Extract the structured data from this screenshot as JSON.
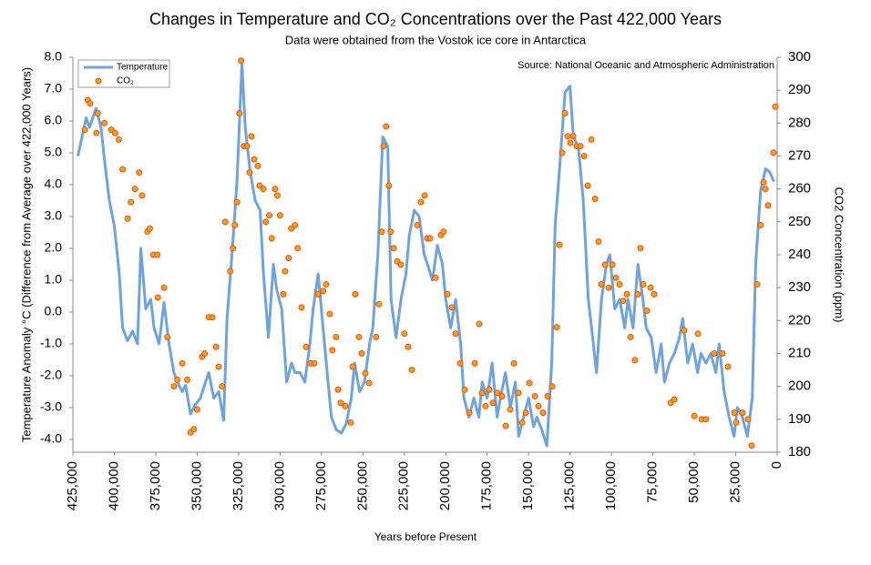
{
  "chart_data": {
    "type": "line",
    "title": "Changes in Temperature and CO₂ Concentrations over the Past 422,000 Years",
    "subtitle": "Data were obtained from the Vostok ice core in Antarctica",
    "annotation": "Source: National Oceanic and Atmospheric Administration",
    "xlabel": "Years before Present",
    "ylabel": "Temperature Anomaly °C (Difference from Average over 422,000 Years)",
    "y2label": "CO2 Concentration (ppm)",
    "xlim": [
      425000,
      0
    ],
    "ylim": [
      -4.4,
      8
    ],
    "y2lim": [
      180,
      300
    ],
    "xticks": [
      {
        "value": 425000,
        "label": "425,000"
      },
      {
        "value": 400000,
        "label": "400,000"
      },
      {
        "value": 375000,
        "label": "375,000"
      },
      {
        "value": 350000,
        "label": "350,000"
      },
      {
        "value": 325000,
        "label": "325,000"
      },
      {
        "value": 300000,
        "label": "300,000"
      },
      {
        "value": 275000,
        "label": "275,000"
      },
      {
        "value": 250000,
        "label": "250,000"
      },
      {
        "value": 225000,
        "label": "225,000"
      },
      {
        "value": 200000,
        "label": "200,000"
      },
      {
        "value": 175000,
        "label": "175,000"
      },
      {
        "value": 150000,
        "label": "150,000"
      },
      {
        "value": 125000,
        "label": "125,000"
      },
      {
        "value": 100000,
        "label": "100,000"
      },
      {
        "value": 75000,
        "label": "75,000"
      },
      {
        "value": 50000,
        "label": "50,000"
      },
      {
        "value": 25000,
        "label": "25,000"
      },
      0
    ],
    "yticks": [
      {
        "value": 8,
        "label": "8.0"
      },
      {
        "value": 7,
        "label": "7.0"
      },
      {
        "value": 6,
        "label": "6.0"
      },
      {
        "value": 5,
        "label": "5.0"
      },
      {
        "value": 4,
        "label": "4.0"
      },
      {
        "value": 3,
        "label": "3.0"
      },
      {
        "value": 2,
        "label": "2.0"
      },
      {
        "value": 1,
        "label": "1.0"
      },
      {
        "value": 0,
        "label": "0.0"
      },
      {
        "value": -1,
        "label": "-1.0"
      },
      {
        "value": -2,
        "label": "-2.0"
      },
      {
        "value": -3,
        "label": "-3.0"
      },
      {
        "value": -4,
        "label": "-4.0"
      }
    ],
    "y2ticks": [
      300,
      290,
      280,
      270,
      260,
      250,
      240,
      230,
      220,
      210,
      200,
      190,
      180
    ],
    "legend": "upper left",
    "series": [
      {
        "name": "Temperature",
        "type": "line",
        "color": "#6fa3dc",
        "x": [
          422000,
          417000,
          415000,
          411000,
          408000,
          406000,
          403000,
          400000,
          397000,
          395000,
          392000,
          389000,
          386000,
          384000,
          381000,
          378000,
          376000,
          373000,
          370000,
          367000,
          364000,
          362000,
          359000,
          357000,
          354000,
          351000,
          348000,
          345000,
          343000,
          340000,
          337000,
          334000,
          332000,
          329000,
          326000,
          323000,
          321000,
          318000,
          315000,
          312000,
          310000,
          307000,
          304000,
          302000,
          299000,
          296000,
          293000,
          291000,
          288000,
          285000,
          282000,
          280000,
          277000,
          274000,
          271000,
          269000,
          266000,
          263000,
          260000,
          257000,
          255000,
          252000,
          249000,
          246000,
          244000,
          241000,
          238000,
          235000,
          233000,
          230000,
          227000,
          224000,
          222000,
          219000,
          216000,
          213000,
          211000,
          208000,
          205000,
          202000,
          200000,
          197000,
          194000,
          191000,
          189000,
          186000,
          183000,
          180000,
          178000,
          175000,
          172000,
          169000,
          167000,
          164000,
          161000,
          158000,
          156000,
          153000,
          150000,
          147000,
          145000,
          142000,
          139000,
          136000,
          134000,
          131000,
          128000,
          125000,
          123000,
          120000,
          117000,
          114000,
          112000,
          109000,
          106000,
          103000,
          101000,
          98000,
          95000,
          92000,
          90000,
          87000,
          84000,
          81000,
          79000,
          76000,
          73000,
          70000,
          68000,
          65000,
          62000,
          59000,
          57000,
          54000,
          51000,
          48000,
          46000,
          43000,
          40000,
          37000,
          35000,
          32000,
          29000,
          26000,
          24000,
          21000,
          18000,
          15000,
          13000,
          10000,
          7000,
          4500,
          2000
        ],
        "values": [
          4.9,
          6.1,
          5.8,
          6.4,
          5.8,
          4.8,
          3.5,
          2.7,
          1.2,
          -0.5,
          -0.9,
          -0.6,
          -1.0,
          2.0,
          0.1,
          0.4,
          -0.5,
          -1.0,
          0.3,
          -1.0,
          -1.9,
          -2.2,
          -2.5,
          -2.3,
          -3.2,
          -2.9,
          -2.7,
          -2.2,
          -1.9,
          -2.7,
          -2.5,
          -3.4,
          -0.2,
          1.8,
          4.1,
          7.8,
          5.8,
          4.4,
          3.5,
          3.2,
          1.2,
          -0.8,
          1.5,
          0.7,
          0.1,
          -2.2,
          -1.6,
          -1.9,
          -1.9,
          -2.2,
          -1.0,
          0.1,
          1.2,
          -0.5,
          -2.2,
          -3.3,
          -3.7,
          -3.8,
          -3.5,
          -2.7,
          -1.6,
          -2.5,
          -2.2,
          -1.0,
          -0.5,
          1.8,
          5.5,
          5.2,
          0.4,
          -0.8,
          0.4,
          1.2,
          2.4,
          3.2,
          3.0,
          1.8,
          1.5,
          1.0,
          2.1,
          1.5,
          0.4,
          -0.5,
          0.4,
          -1.0,
          -2.7,
          -3.3,
          -2.7,
          -3.3,
          -2.2,
          -2.7,
          -1.6,
          -3.3,
          -2.7,
          -1.9,
          -3.0,
          -2.2,
          -3.9,
          -3.3,
          -2.7,
          -3.6,
          -3.3,
          -3.7,
          -4.2,
          -1.6,
          2.7,
          4.7,
          6.9,
          7.1,
          5.5,
          5.2,
          3.5,
          0.4,
          -0.5,
          -1.9,
          0.4,
          1.5,
          1.8,
          0.1,
          0.4,
          -0.5,
          0.4,
          -0.5,
          1.5,
          0.4,
          -0.5,
          -0.8,
          -1.9,
          -1.0,
          -2.2,
          -1.6,
          -1.3,
          -0.8,
          -0.2,
          -1.6,
          -1.0,
          -1.9,
          -1.3,
          -1.6,
          -1.3,
          -1.9,
          -1.0,
          -2.5,
          -3.3,
          -3.9,
          -3.0,
          -3.3,
          -3.9,
          -2.7,
          1.5,
          3.8,
          4.5,
          4.4,
          4.1
        ]
      },
      {
        "name": "CO₂",
        "type": "scatter",
        "axis": "y2",
        "color": "#f9a11b",
        "edgecolor": "#e4531c",
        "x": [
          417800,
          416000,
          414600,
          410800,
          410000,
          406000,
          401800,
          399500,
          397300,
          395000,
          392000,
          390000,
          387500,
          385000,
          383300,
          380000,
          378600,
          376400,
          374000,
          373700,
          370000,
          368000,
          364000,
          362000,
          359000,
          356000,
          354000,
          352000,
          350000,
          347000,
          345500,
          343000,
          340800,
          338600,
          337000,
          335000,
          333000,
          330000,
          328400,
          327300,
          326000,
          324500,
          323500,
          321800,
          320000,
          318400,
          317300,
          315600,
          313400,
          312300,
          310000,
          308600,
          306500,
          305000,
          303000,
          301600,
          300000,
          298000,
          297000,
          294800,
          293200,
          291000,
          289400,
          287000,
          284300,
          281500,
          279300,
          277100,
          274000,
          272200,
          270000,
          268400,
          266200,
          265000,
          263400,
          260600,
          257300,
          256200,
          254600,
          252400,
          250700,
          248500,
          246300,
          242000,
          240300,
          238600,
          237500,
          236000,
          234300,
          233200,
          231500,
          229300,
          227100,
          225000,
          222700,
          220500,
          217200,
          215000,
          212800,
          211100,
          209500,
          206200,
          202900,
          201300,
          199000,
          196300,
          194100,
          191300,
          188600,
          185800,
          182500,
          179800,
          178100,
          176000,
          173700,
          171500,
          168800,
          166000,
          163800,
          161100,
          158900,
          156100,
          153900,
          151700,
          149500,
          146200,
          144000,
          141300,
          138500,
          135800,
          133000,
          131400,
          129700,
          128100,
          126400,
          124800,
          123100,
          120900,
          118700,
          116500,
          114300,
          112100,
          109900,
          107800,
          106100,
          103900,
          101700,
          99500,
          97300,
          95100,
          92900,
          90700,
          88500,
          85800,
          84100,
          82500,
          80800,
          78600,
          76400,
          74200,
          64300,
          62100,
          56100,
          50000,
          47800,
          45600,
          42900,
          38000,
          33000,
          29700,
          25800,
          24700,
          20900,
          17600,
          15400,
          12100,
          9900,
          8200,
          7100,
          5500,
          2200,
          1100
        ],
        "values": [
          278,
          287,
          286,
          277,
          283,
          280,
          278,
          277,
          275,
          266,
          251,
          256,
          260,
          265,
          258,
          247,
          248,
          240,
          240,
          227,
          230,
          215,
          200,
          202,
          207,
          202,
          186,
          187,
          193,
          209,
          210,
          221,
          221,
          212,
          206,
          200,
          250,
          235,
          242,
          249,
          256,
          283,
          299,
          273,
          273,
          265,
          276,
          269,
          267,
          261,
          260,
          250,
          252,
          245,
          260,
          258,
          252,
          228,
          235,
          239,
          248,
          249,
          242,
          224,
          212,
          207,
          207,
          228,
          229,
          231,
          222,
          211,
          215,
          199,
          195,
          194,
          189,
          206,
          228,
          215,
          210,
          204,
          201,
          215,
          225,
          247,
          273,
          279,
          261,
          247,
          242,
          238,
          237,
          216,
          212,
          205,
          249,
          256,
          258,
          245,
          245,
          233,
          246,
          247,
          228,
          224,
          216,
          207,
          199,
          192,
          207,
          219,
          198,
          194,
          199,
          195,
          198,
          197,
          188,
          193,
          207,
          198,
          189,
          192,
          201,
          197,
          194,
          192,
          197,
          200,
          218,
          243,
          271,
          283,
          276,
          274,
          276,
          273,
          273,
          270,
          261,
          275,
          257,
          244,
          231,
          237,
          230,
          237,
          233,
          231,
          226,
          228,
          215,
          208,
          228,
          242,
          231,
          223,
          230,
          228,
          195,
          196,
          217,
          191,
          216,
          190,
          190,
          210,
          210,
          206,
          192,
          189,
          192,
          190,
          182,
          231,
          249,
          262,
          260,
          255,
          271,
          285
        ]
      }
    ]
  }
}
